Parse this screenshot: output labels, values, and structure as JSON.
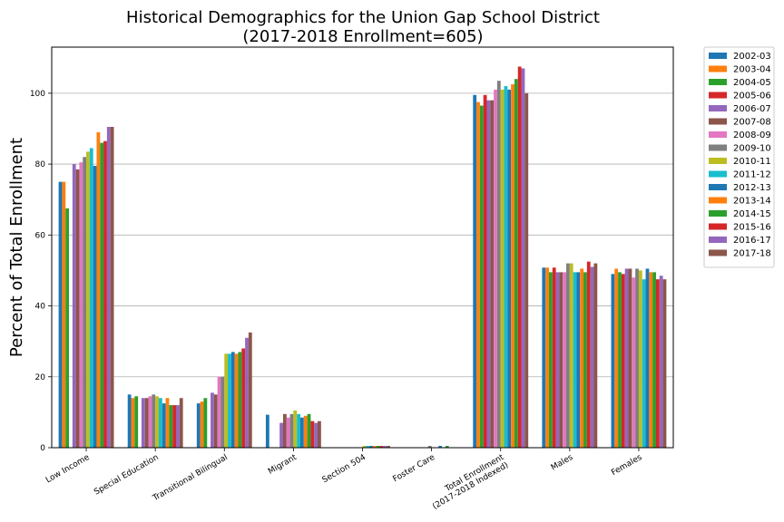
{
  "chart_data": {
    "type": "bar",
    "title": "Historical Demographics for the Union Gap School District",
    "subtitle": "(2017-2018 Enrollment=605)",
    "xlabel": "",
    "ylabel": "Percent of Total Enrollment",
    "ylim": [
      0,
      113
    ],
    "yticks": [
      0,
      20,
      40,
      60,
      80,
      100
    ],
    "grid": "horizontal",
    "legend_position": "outside-top-right",
    "categories": [
      [
        "Low Income"
      ],
      [
        "Special Education"
      ],
      [
        "Transitional Bilingual"
      ],
      [
        "Migrant"
      ],
      [
        "Section 504"
      ],
      [
        "Foster Care"
      ],
      [
        "Total Enrollment",
        "(2017-2018 Indexed)"
      ],
      [
        "Males"
      ],
      [
        "Females"
      ]
    ],
    "series": [
      {
        "name": "2002-03",
        "color": "#1f77b4",
        "values": [
          75,
          15,
          12.5,
          9.3,
          0,
          0,
          99.5,
          50.8,
          49
        ]
      },
      {
        "name": "2003-04",
        "color": "#ff7f0e",
        "values": [
          75,
          14,
          13,
          0,
          0,
          0,
          97.5,
          50.8,
          50.5
        ]
      },
      {
        "name": "2004-05",
        "color": "#2ca02c",
        "values": [
          67.5,
          14.5,
          14,
          0,
          0,
          0,
          96.5,
          49.5,
          49.5
        ]
      },
      {
        "name": "2005-06",
        "color": "#d62728",
        "values": [
          0,
          0,
          0,
          0,
          0,
          0,
          99.5,
          50.8,
          49
        ]
      },
      {
        "name": "2006-07",
        "color": "#9467bd",
        "values": [
          80,
          14,
          15.5,
          7,
          0,
          0,
          98,
          49.5,
          50.5
        ]
      },
      {
        "name": "2007-08",
        "color": "#8c564b",
        "values": [
          78.5,
          14,
          15,
          9.5,
          0,
          0,
          98,
          49.5,
          50.5
        ]
      },
      {
        "name": "2008-09",
        "color": "#e377c2",
        "values": [
          80.5,
          14.5,
          20,
          8.5,
          0,
          0,
          101,
          49.5,
          48
        ]
      },
      {
        "name": "2009-10",
        "color": "#7f7f7f",
        "values": [
          82,
          15,
          20,
          9.5,
          0,
          0.5,
          103.5,
          52,
          50.5
        ]
      },
      {
        "name": "2010-11",
        "color": "#bcbd22",
        "values": [
          83.5,
          14.5,
          26.5,
          10.5,
          0.5,
          0,
          101,
          52,
          50
        ]
      },
      {
        "name": "2011-12",
        "color": "#17becf",
        "values": [
          84.5,
          14,
          26.5,
          9.5,
          0.5,
          0,
          102,
          49.5,
          47.5
        ]
      },
      {
        "name": "2012-13",
        "color": "#1f77b4",
        "values": [
          79.5,
          12.5,
          27,
          8.5,
          0.5,
          0.5,
          101,
          49.5,
          50.5
        ]
      },
      {
        "name": "2013-14",
        "color": "#ff7f0e",
        "values": [
          89,
          14,
          26.5,
          9,
          0.5,
          0,
          102.5,
          50.5,
          49.5
        ]
      },
      {
        "name": "2014-15",
        "color": "#2ca02c",
        "values": [
          86,
          12,
          27,
          9.5,
          0.5,
          0.5,
          104,
          49.5,
          49.5
        ]
      },
      {
        "name": "2015-16",
        "color": "#d62728",
        "values": [
          86.5,
          12,
          28,
          7.5,
          0.5,
          0,
          107.5,
          52.5,
          47.5
        ]
      },
      {
        "name": "2016-17",
        "color": "#9467bd",
        "values": [
          90.5,
          12,
          31,
          7,
          0.5,
          0,
          107,
          51,
          48.5
        ]
      },
      {
        "name": "2017-18",
        "color": "#8c564b",
        "values": [
          90.5,
          14,
          32.5,
          7.5,
          0.5,
          0,
          100,
          52,
          47.5
        ]
      }
    ]
  }
}
